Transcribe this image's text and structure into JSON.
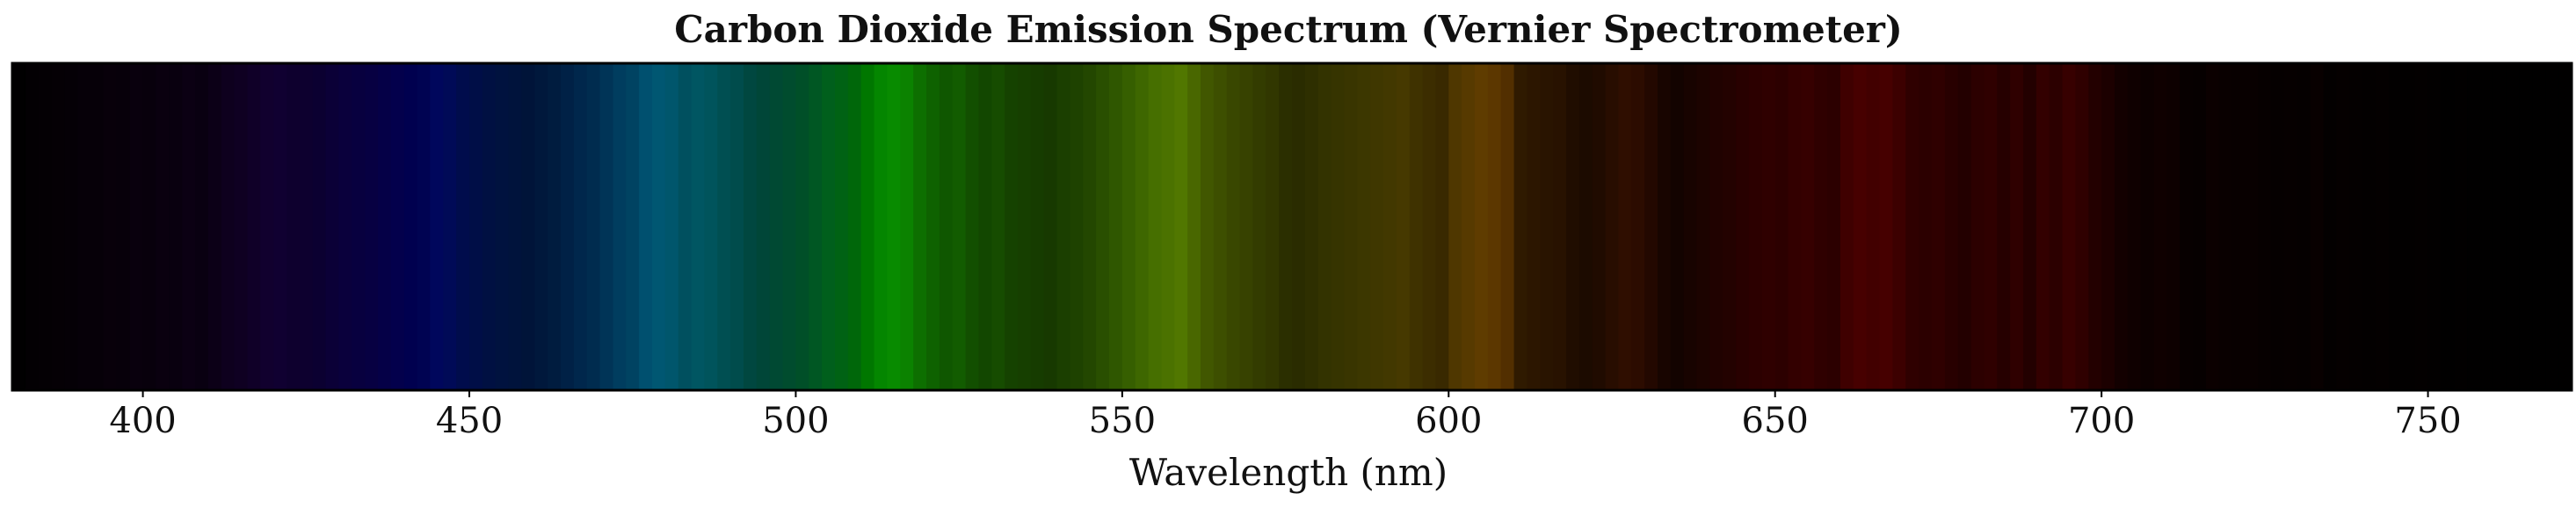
{
  "chart_data": {
    "type": "heatmap",
    "title": "Carbon Dioxide Emission Spectrum (Vernier Spectrometer)",
    "xlabel": "Wavelength (nm)",
    "ylabel": "",
    "xlim": [
      380,
      772
    ],
    "xticks": [
      400,
      450,
      500,
      550,
      600,
      650,
      700,
      750
    ],
    "xtick_labels": [
      "400",
      "450",
      "500",
      "550",
      "600",
      "650",
      "700",
      "750"
    ],
    "grid": false,
    "legend": "none",
    "wavelengths": [
      380,
      382,
      384,
      386,
      388,
      390,
      392,
      394,
      396,
      398,
      400,
      402,
      404,
      406,
      408,
      410,
      412,
      414,
      416,
      418,
      420,
      422,
      424,
      426,
      428,
      430,
      432,
      434,
      436,
      438,
      440,
      442,
      444,
      446,
      448,
      450,
      452,
      454,
      456,
      458,
      460,
      462,
      464,
      466,
      468,
      470,
      472,
      474,
      476,
      478,
      480,
      482,
      484,
      486,
      488,
      490,
      492,
      494,
      496,
      498,
      500,
      502,
      504,
      506,
      508,
      510,
      512,
      514,
      516,
      518,
      520,
      522,
      524,
      526,
      528,
      530,
      532,
      534,
      536,
      538,
      540,
      542,
      544,
      546,
      548,
      550,
      552,
      554,
      556,
      558,
      560,
      562,
      564,
      566,
      568,
      570,
      572,
      574,
      576,
      578,
      580,
      582,
      584,
      586,
      588,
      590,
      592,
      594,
      596,
      598,
      600,
      602,
      604,
      606,
      608,
      610,
      612,
      614,
      616,
      618,
      620,
      622,
      624,
      626,
      628,
      630,
      632,
      634,
      636,
      638,
      640,
      642,
      644,
      646,
      648,
      650,
      652,
      654,
      656,
      658,
      660,
      662,
      664,
      666,
      668,
      670,
      672,
      674,
      676,
      678,
      680,
      682,
      684,
      686,
      688,
      690,
      692,
      694,
      696,
      698,
      700,
      702,
      704,
      706,
      708,
      710,
      712,
      714,
      716,
      718,
      720,
      722,
      724,
      726,
      728,
      730,
      732,
      734,
      736,
      738,
      740,
      742,
      744,
      746,
      748,
      750,
      752,
      754,
      756,
      758,
      760,
      762,
      764,
      766,
      768,
      770
    ],
    "intensity": [
      0.03,
      0.05,
      0.07,
      0.08,
      0.09,
      0.1,
      0.1,
      0.12,
      0.11,
      0.13,
      0.12,
      0.14,
      0.13,
      0.16,
      0.14,
      0.18,
      0.22,
      0.24,
      0.27,
      0.3,
      0.31,
      0.29,
      0.3,
      0.31,
      0.35,
      0.38,
      0.4,
      0.42,
      0.45,
      0.48,
      0.5,
      0.52,
      0.58,
      0.55,
      0.48,
      0.45,
      0.42,
      0.4,
      0.38,
      0.36,
      0.38,
      0.4,
      0.44,
      0.48,
      0.5,
      0.55,
      0.6,
      0.62,
      0.7,
      0.72,
      0.68,
      0.6,
      0.62,
      0.58,
      0.52,
      0.48,
      0.45,
      0.44,
      0.46,
      0.48,
      0.5,
      0.55,
      0.6,
      0.62,
      0.65,
      0.75,
      0.85,
      0.88,
      0.82,
      0.7,
      0.62,
      0.55,
      0.58,
      0.5,
      0.45,
      0.48,
      0.42,
      0.4,
      0.38,
      0.36,
      0.4,
      0.42,
      0.45,
      0.5,
      0.55,
      0.6,
      0.65,
      0.7,
      0.72,
      0.75,
      0.65,
      0.55,
      0.5,
      0.45,
      0.42,
      0.38,
      0.35,
      0.3,
      0.28,
      0.3,
      0.32,
      0.34,
      0.36,
      0.38,
      0.4,
      0.42,
      0.44,
      0.4,
      0.38,
      0.36,
      0.5,
      0.55,
      0.6,
      0.58,
      0.52,
      0.3,
      0.28,
      0.26,
      0.25,
      0.2,
      0.18,
      0.2,
      0.25,
      0.3,
      0.28,
      0.22,
      0.15,
      0.12,
      0.15,
      0.18,
      0.2,
      0.22,
      0.25,
      0.28,
      0.3,
      0.28,
      0.32,
      0.34,
      0.3,
      0.28,
      0.4,
      0.45,
      0.42,
      0.44,
      0.38,
      0.3,
      0.28,
      0.3,
      0.25,
      0.22,
      0.28,
      0.3,
      0.24,
      0.3,
      0.22,
      0.32,
      0.28,
      0.35,
      0.3,
      0.22,
      0.18,
      0.12,
      0.1,
      0.08,
      0.1,
      0.09,
      0.05,
      0.04,
      0.08,
      0.07,
      0.06,
      0.06,
      0.05,
      0.04,
      0.05,
      0.04,
      0.07,
      0.03,
      0.05,
      0.04,
      0.03,
      0.04,
      0.02,
      0.02,
      0.03,
      0.02,
      0.01,
      0.02,
      0.01,
      0.01,
      0.01,
      0.01,
      0.01,
      0.01,
      0.01,
      0.01
    ]
  }
}
